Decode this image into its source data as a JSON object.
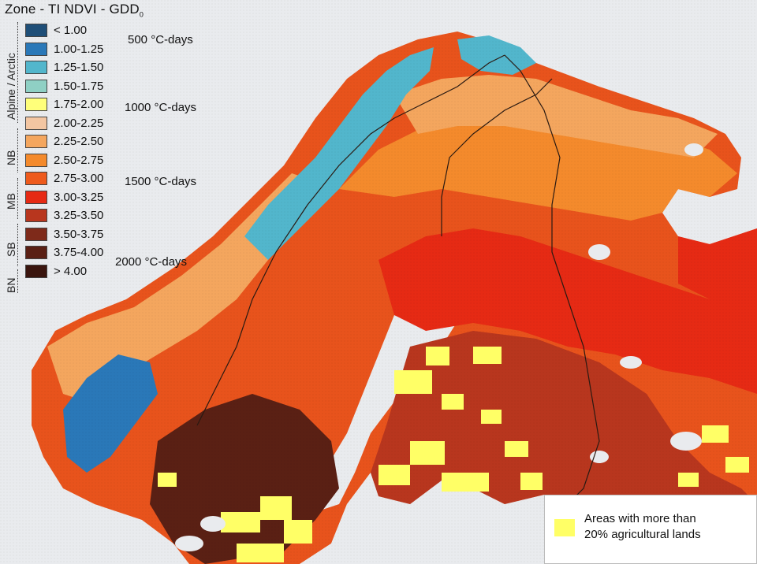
{
  "title": {
    "text": "Zone - TI NDVI - GDD",
    "subscript": "0"
  },
  "legend": {
    "classes": [
      {
        "label": "< 1.00",
        "color": "#1f4f78"
      },
      {
        "label": "1.00-1.25",
        "color": "#2a78b8"
      },
      {
        "label": "1.25-1.50",
        "color": "#52b6cc"
      },
      {
        "label": "1.50-1.75",
        "color": "#8fd0c4"
      },
      {
        "label": "1.75-2.00",
        "color": "#ffff7a"
      },
      {
        "label": "2.00-2.25",
        "color": "#f3c6a2"
      },
      {
        "label": "2.25-2.50",
        "color": "#f4a65e"
      },
      {
        "label": "2.50-2.75",
        "color": "#f48a2c"
      },
      {
        "label": "2.75-3.00",
        "color": "#ee5a1c"
      },
      {
        "label": "3.00-3.25",
        "color": "#e62a14"
      },
      {
        "label": "3.25-3.50",
        "color": "#b8361e"
      },
      {
        "label": "3.50-3.75",
        "color": "#7e2a1a"
      },
      {
        "label": "3.75-4.00",
        "color": "#5a2014"
      },
      {
        "label": "> 4.00",
        "color": "#3a150e"
      }
    ],
    "zones": [
      {
        "label": "Alpine / Arctic"
      },
      {
        "label": "NB"
      },
      {
        "label": "MB"
      },
      {
        "label": "SB"
      },
      {
        "label": "BN"
      }
    ],
    "gdd_labels": [
      "500 °C-days",
      "1000 °C-days",
      "1500 °C-days",
      "2000 °C-days"
    ]
  },
  "agriculture_legend": {
    "text_line1": "Areas with more than",
    "text_line2": "20% agricultural lands",
    "color": "#ffff66"
  },
  "colors": {
    "sea": "#e9ebee",
    "land_default": "#e8531c"
  }
}
